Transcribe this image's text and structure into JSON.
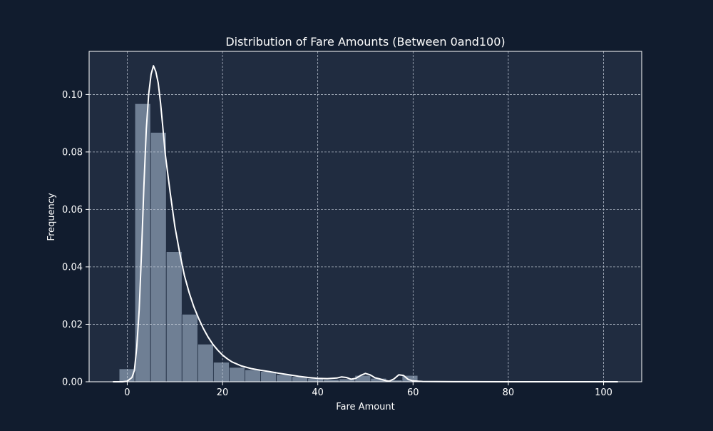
{
  "colors": {
    "figure_bg": "#111c2e",
    "plot_bg": "#202c40",
    "bar_fill": "#8a9bb0",
    "kde_line": "#ffffff",
    "grid": "#c8d0dc",
    "axis": "#ffffff"
  },
  "chart_data": {
    "type": "bar",
    "subtype": "histogram-with-kde",
    "title": "Distribution of Fare Amounts (Between 0and100)",
    "xlabel": "Fare Amount",
    "ylabel": "Frequency",
    "xlim": [
      -8,
      108
    ],
    "ylim": [
      0,
      0.115
    ],
    "xticks": [
      0,
      20,
      40,
      60,
      80,
      100
    ],
    "yticks": [
      0.0,
      0.02,
      0.04,
      0.06,
      0.08,
      0.1
    ],
    "xtick_labels": [
      "0",
      "20",
      "40",
      "60",
      "80",
      "100"
    ],
    "ytick_labels": [
      "0.00",
      "0.02",
      "0.04",
      "0.06",
      "0.08",
      "0.10"
    ],
    "grid": true,
    "legend": false,
    "bin_width": 3.3,
    "bin_start": -1.7,
    "histogram": [
      0.0045,
      0.0968,
      0.0868,
      0.0453,
      0.0235,
      0.0131,
      0.0068,
      0.005,
      0.0042,
      0.0036,
      0.0025,
      0.0018,
      0.0012,
      0.0008,
      0.001,
      0.0022,
      0.0012,
      0.0006,
      0.0022
    ],
    "kde": {
      "x": [
        -3,
        -1,
        0,
        1,
        1.5,
        2,
        2.5,
        3,
        3.5,
        4,
        4.5,
        5,
        5.5,
        6,
        6.5,
        7,
        7.5,
        8,
        9,
        10,
        11,
        12,
        13,
        14,
        15,
        16,
        17,
        18,
        19,
        20,
        21,
        22,
        24,
        26,
        28,
        30,
        32,
        34,
        36,
        38,
        40,
        42,
        44,
        45,
        46,
        47,
        48,
        49,
        50,
        51,
        52,
        53,
        54,
        55,
        56,
        57,
        58,
        59,
        60,
        62,
        65,
        70,
        80,
        90,
        100,
        103
      ],
      "y": [
        0,
        0,
        0.0002,
        0.0015,
        0.004,
        0.012,
        0.025,
        0.045,
        0.068,
        0.088,
        0.1,
        0.107,
        0.11,
        0.108,
        0.104,
        0.097,
        0.088,
        0.079,
        0.066,
        0.054,
        0.045,
        0.037,
        0.031,
        0.026,
        0.022,
        0.0185,
        0.0155,
        0.013,
        0.011,
        0.0093,
        0.008,
        0.0069,
        0.0055,
        0.0046,
        0.004,
        0.0035,
        0.0029,
        0.0024,
        0.0019,
        0.0015,
        0.0012,
        0.0011,
        0.0013,
        0.0017,
        0.0015,
        0.0009,
        0.0012,
        0.0022,
        0.0029,
        0.0024,
        0.0014,
        0.001,
        0.0005,
        0.0002,
        0.001,
        0.0024,
        0.0022,
        0.0008,
        0.0003,
        0.0001,
        5e-05,
        2e-05,
        0,
        0,
        0,
        0
      ]
    }
  }
}
